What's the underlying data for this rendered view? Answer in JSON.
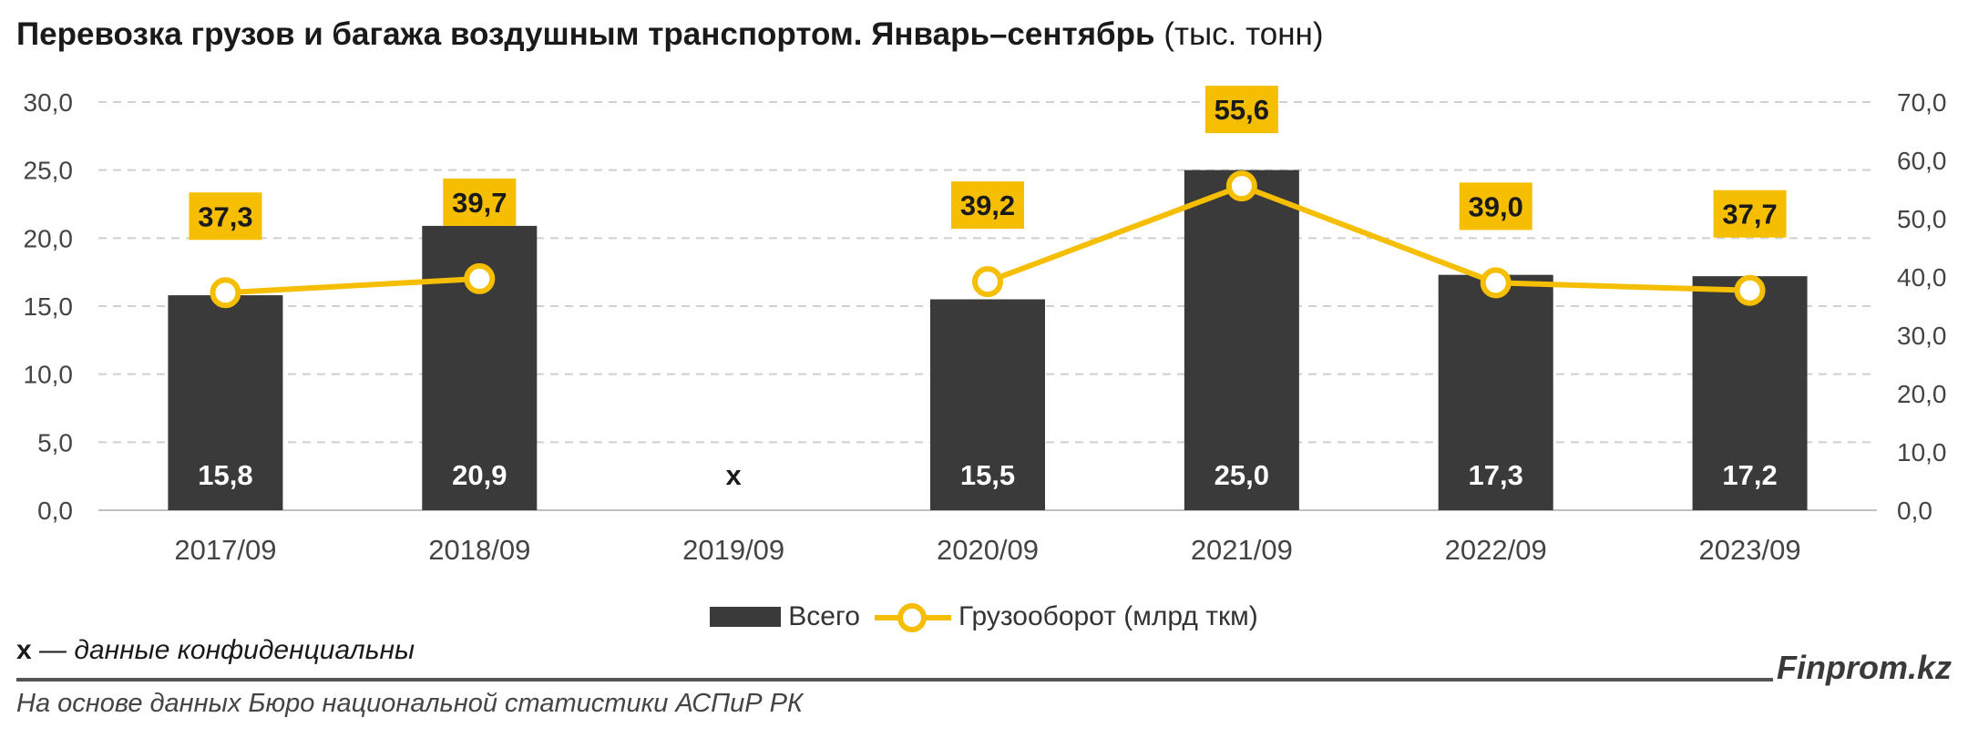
{
  "title": "Перевозка грузов и багажа воздушным транспортом. Январь–сентябрь",
  "title_unit": "(тыс. тонн)",
  "chart_data": {
    "type": "bar",
    "categories": [
      "2017/09",
      "2018/09",
      "2019/09",
      "2020/09",
      "2021/09",
      "2022/09",
      "2023/09"
    ],
    "series": [
      {
        "name": "Всего",
        "type": "bar",
        "axis": "left",
        "values": [
          15.8,
          20.9,
          null,
          15.5,
          25.0,
          17.3,
          17.2
        ],
        "labels": [
          "15,8",
          "20,9",
          "x",
          "15,5",
          "25,0",
          "17,3",
          "17,2"
        ]
      },
      {
        "name": "Грузооборот (млрд ткм)",
        "type": "line",
        "axis": "right",
        "values": [
          37.3,
          39.7,
          null,
          39.2,
          55.6,
          39.0,
          37.7
        ],
        "labels": [
          "37,3",
          "39,7",
          "",
          "39,2",
          "55,6",
          "39,0",
          "37,7"
        ]
      }
    ],
    "ylim_left": [
      0,
      30
    ],
    "yticks_left": [
      "0,0",
      "5,0",
      "10,0",
      "15,0",
      "20,0",
      "25,0",
      "30,0"
    ],
    "ylim_right": [
      0,
      70
    ],
    "yticks_right": [
      "0,0",
      "10,0",
      "20,0",
      "30,0",
      "40,0",
      "50,0",
      "60,0",
      "70,0"
    ],
    "grid": true,
    "legend_position": "bottom",
    "colors": {
      "bar": "#3a3a3a",
      "line": "#f5be00",
      "bar_label": "#ffffff"
    }
  },
  "legend": {
    "bar_label": "Всего",
    "line_label": "Грузооборот (млрд ткм)"
  },
  "note": {
    "mark": "x",
    "text": " — данные конфиденциальны"
  },
  "brand": "Finprom.kz",
  "source": "На основе данных Бюро национальной статистики АСПиР РК"
}
